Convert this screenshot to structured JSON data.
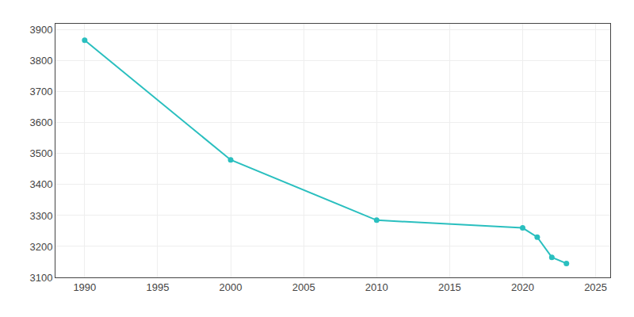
{
  "chart_data": {
    "type": "line",
    "x": [
      1990,
      2000,
      2010,
      2020,
      2021,
      2022,
      2023
    ],
    "values": [
      3867,
      3480,
      3285,
      3260,
      3230,
      3165,
      3145
    ],
    "color": "#2abfbf",
    "marker": "circle",
    "xlim": [
      1988,
      2026
    ],
    "ylim": [
      3100,
      3920
    ],
    "xticks": [
      1990,
      1995,
      2000,
      2005,
      2010,
      2015,
      2020,
      2025
    ],
    "yticks": [
      3100,
      3200,
      3300,
      3400,
      3500,
      3600,
      3700,
      3800,
      3900
    ],
    "grid": true
  }
}
